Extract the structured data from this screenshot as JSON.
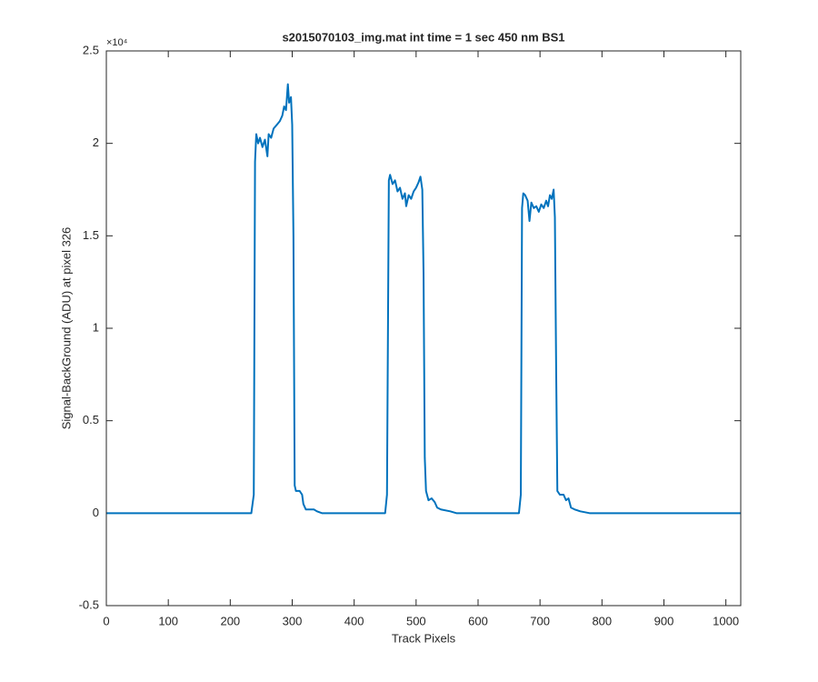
{
  "chart_data": {
    "type": "line",
    "title": "s2015070103_img.mat int time = 1 sec  450 nm BS1",
    "x_label": "Track Pixels",
    "y_label": "Signal-BackGround (ADU) at pixel 326",
    "y_exponent": "×10⁴",
    "xlim": [
      0,
      1024
    ],
    "ylim": [
      -0.5,
      2.5
    ],
    "xticks": [
      0,
      100,
      200,
      300,
      400,
      500,
      600,
      700,
      800,
      900,
      1000
    ],
    "yticks": [
      -0.5,
      0,
      0.5,
      1,
      1.5,
      2,
      2.5
    ],
    "x": [
      0,
      100,
      200,
      234,
      238,
      240,
      242,
      245,
      248,
      252,
      256,
      260,
      262,
      266,
      270,
      275,
      280,
      284,
      287,
      290,
      293,
      295,
      298,
      300,
      302,
      304,
      306,
      312,
      316,
      318,
      322,
      335,
      340,
      348,
      352,
      450,
      453,
      456,
      458,
      462,
      466,
      470,
      474,
      478,
      482,
      484,
      488,
      492,
      496,
      500,
      504,
      507,
      510,
      512,
      514,
      516,
      520,
      525,
      530,
      534,
      540,
      555,
      565,
      666,
      669,
      671,
      673,
      676,
      680,
      683,
      686,
      690,
      694,
      698,
      702,
      706,
      710,
      713,
      716,
      719,
      722,
      724,
      726,
      728,
      732,
      738,
      742,
      746,
      750,
      756,
      765,
      780,
      900,
      1024
    ],
    "series": [
      {
        "color": "#0072BD",
        "values": [
          0,
          0,
          0,
          0,
          0.1,
          1.9,
          2.05,
          2.0,
          2.03,
          1.98,
          2.02,
          1.93,
          2.05,
          2.03,
          2.08,
          2.1,
          2.12,
          2.15,
          2.2,
          2.18,
          2.32,
          2.22,
          2.25,
          2.1,
          1.5,
          0.15,
          0.12,
          0.12,
          0.1,
          0.05,
          0.02,
          0.02,
          0.01,
          0,
          0,
          0,
          0.1,
          1.8,
          1.83,
          1.78,
          1.8,
          1.74,
          1.76,
          1.7,
          1.73,
          1.66,
          1.72,
          1.7,
          1.74,
          1.76,
          1.79,
          1.82,
          1.75,
          1.3,
          0.3,
          0.12,
          0.07,
          0.08,
          0.06,
          0.03,
          0.02,
          0.01,
          0,
          0,
          0.1,
          1.65,
          1.73,
          1.72,
          1.69,
          1.58,
          1.68,
          1.65,
          1.66,
          1.63,
          1.67,
          1.65,
          1.69,
          1.66,
          1.72,
          1.7,
          1.75,
          1.6,
          0.8,
          0.12,
          0.1,
          0.1,
          0.07,
          0.08,
          0.03,
          0.02,
          0.01,
          0,
          0,
          0
        ]
      }
    ]
  }
}
